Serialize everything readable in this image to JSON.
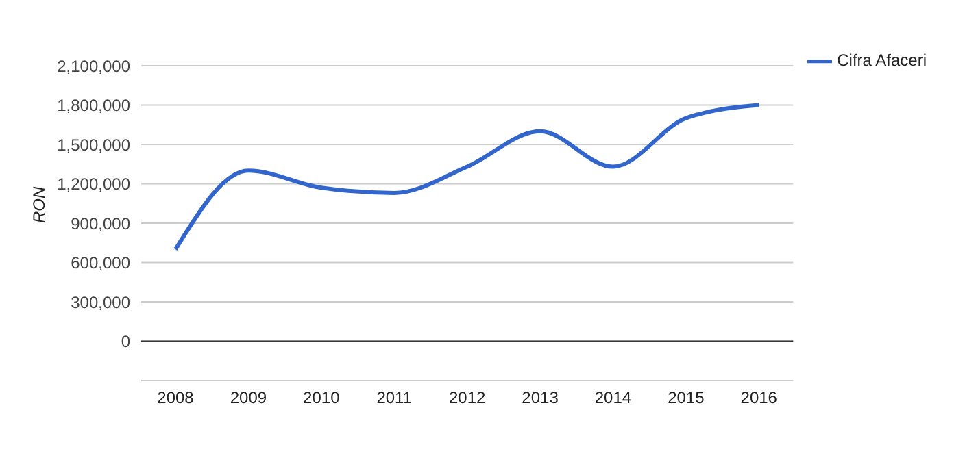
{
  "chart_data": {
    "type": "line",
    "ylabel": "RON",
    "categories": [
      "2008",
      "2009",
      "2010",
      "2011",
      "2012",
      "2013",
      "2014",
      "2015",
      "2016"
    ],
    "series": [
      {
        "name": "Cifra Afaceri",
        "color": "#3366cc",
        "values": [
          700000,
          1300000,
          1170000,
          1130000,
          1330000,
          1600000,
          1330000,
          1700000,
          1800000
        ]
      }
    ],
    "ylim": [
      -300000,
      2100000
    ],
    "yticks": [
      {
        "value": -300000,
        "label": null
      },
      0,
      {
        "value": 300000,
        "label": "300,000"
      },
      {
        "value": 600000,
        "label": "600,000"
      },
      {
        "value": 900000,
        "label": "900,000"
      },
      {
        "value": 1200000,
        "label": "1,200,000"
      },
      {
        "value": 1500000,
        "label": "1,500,000"
      },
      {
        "value": 1800000,
        "label": "1,800,000"
      },
      {
        "value": 2100000,
        "label": "2,100,000"
      }
    ],
    "ref_lines": [
      {
        "axis": "y",
        "value": 0,
        "color": "#333333"
      }
    ],
    "grid": "y",
    "legend": "top right",
    "marker": "none",
    "line_style": "solid"
  }
}
